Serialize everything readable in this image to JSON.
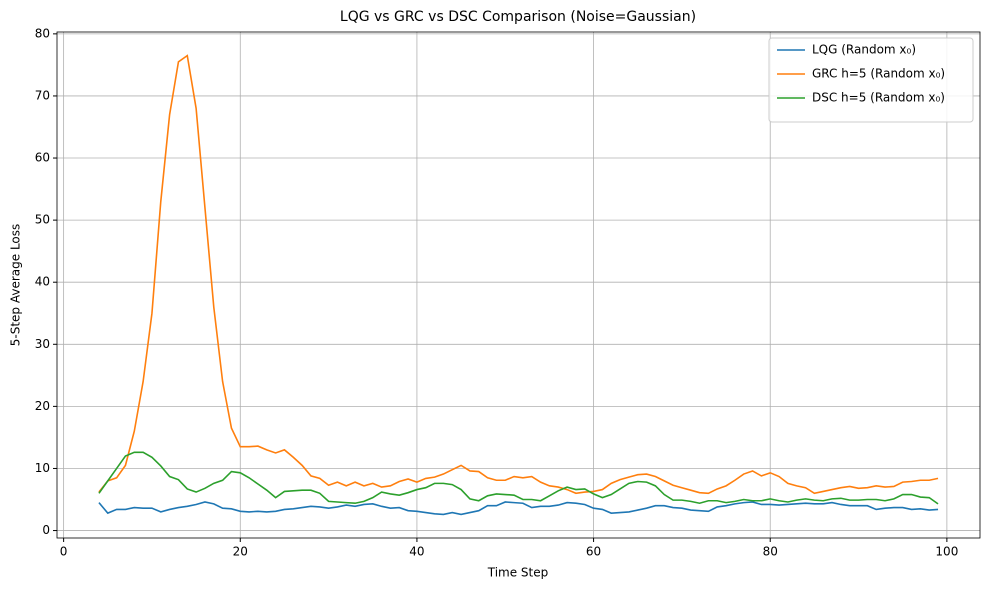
{
  "chart_data": {
    "type": "line",
    "title": "LQG vs GRC vs DSC Comparison (Noise=Gaussian)",
    "x_label": "Time Step",
    "y_label": "5-Step Average Loss",
    "x": [
      4,
      5,
      6,
      7,
      8,
      9,
      10,
      11,
      12,
      13,
      14,
      15,
      16,
      17,
      18,
      19,
      20,
      21,
      22,
      23,
      24,
      25,
      26,
      27,
      28,
      29,
      30,
      31,
      32,
      33,
      34,
      35,
      36,
      37,
      38,
      39,
      40,
      41,
      42,
      43,
      44,
      45,
      46,
      47,
      48,
      49,
      50,
      51,
      52,
      53,
      54,
      55,
      56,
      57,
      58,
      59,
      60,
      61,
      62,
      63,
      64,
      65,
      66,
      67,
      68,
      69,
      70,
      71,
      72,
      73,
      74,
      75,
      76,
      77,
      78,
      79,
      80,
      81,
      82,
      83,
      84,
      85,
      86,
      87,
      88,
      89,
      90,
      91,
      92,
      93,
      94,
      95,
      96,
      97,
      98,
      99
    ],
    "series": [
      {
        "name": "LQG (Random x₀)",
        "color": "#1f77b4",
        "values": [
          4.5,
          2.8,
          3.4,
          3.4,
          3.7,
          3.6,
          3.6,
          3.0,
          3.4,
          3.7,
          3.9,
          4.2,
          4.6,
          4.3,
          3.6,
          3.5,
          3.1,
          3.0,
          3.1,
          3.0,
          3.1,
          3.4,
          3.5,
          3.7,
          3.9,
          3.8,
          3.6,
          3.8,
          4.1,
          3.9,
          4.2,
          4.3,
          3.9,
          3.6,
          3.7,
          3.2,
          3.1,
          2.9,
          2.7,
          2.6,
          2.9,
          2.6,
          2.9,
          3.2,
          4.0,
          4.0,
          4.6,
          4.5,
          4.4,
          3.7,
          3.9,
          3.9,
          4.1,
          4.5,
          4.4,
          4.2,
          3.6,
          3.4,
          2.8,
          2.9,
          3.0,
          3.3,
          3.6,
          4.0,
          4.0,
          3.7,
          3.6,
          3.3,
          3.2,
          3.1,
          3.8,
          4.0,
          4.3,
          4.5,
          4.6,
          4.2,
          4.2,
          4.1,
          4.2,
          4.3,
          4.4,
          4.3,
          4.3,
          4.5,
          4.2,
          4.0,
          4.0,
          4.0,
          3.4,
          3.6,
          3.7,
          3.7,
          3.4,
          3.5,
          3.3,
          3.4
        ]
      },
      {
        "name": "GRC h=5 (Random x₀)",
        "color": "#ff7f0e",
        "values": [
          6.2,
          8.0,
          8.5,
          10.5,
          16.0,
          24.0,
          35.0,
          53.0,
          67.0,
          75.5,
          76.5,
          68.0,
          52.0,
          36.0,
          24.0,
          16.5,
          13.5,
          13.5,
          13.6,
          13.0,
          12.5,
          13.0,
          11.8,
          10.5,
          8.8,
          8.4,
          7.3,
          7.8,
          7.2,
          7.8,
          7.2,
          7.6,
          7.0,
          7.2,
          7.9,
          8.3,
          7.8,
          8.4,
          8.6,
          9.1,
          9.8,
          10.5,
          9.6,
          9.5,
          8.5,
          8.1,
          8.1,
          8.7,
          8.5,
          8.7,
          7.8,
          7.2,
          7.0,
          6.6,
          6.0,
          6.2,
          6.3,
          6.6,
          7.6,
          8.2,
          8.6,
          9.0,
          9.1,
          8.7,
          8.0,
          7.3,
          6.9,
          6.5,
          6.1,
          6.0,
          6.7,
          7.2,
          8.1,
          9.1,
          9.6,
          8.8,
          9.3,
          8.7,
          7.6,
          7.2,
          6.9,
          6.0,
          6.3,
          6.6,
          6.9,
          7.1,
          6.8,
          6.9,
          7.2,
          7.0,
          7.1,
          7.8,
          7.9,
          8.1,
          8.1,
          8.4
        ]
      },
      {
        "name": "DSC h=5 (Random x₀)",
        "color": "#2ca02c",
        "values": [
          6.0,
          8.0,
          10.0,
          12.0,
          12.6,
          12.6,
          11.8,
          10.4,
          8.7,
          8.2,
          6.7,
          6.2,
          6.8,
          7.6,
          8.1,
          9.5,
          9.3,
          8.5,
          7.5,
          6.5,
          5.3,
          6.3,
          6.4,
          6.5,
          6.5,
          6.0,
          4.7,
          4.6,
          4.5,
          4.4,
          4.7,
          5.3,
          6.2,
          5.9,
          5.7,
          6.1,
          6.6,
          6.9,
          7.6,
          7.6,
          7.4,
          6.6,
          5.1,
          4.8,
          5.6,
          5.9,
          5.8,
          5.7,
          5.0,
          5.0,
          4.8,
          5.6,
          6.4,
          7.0,
          6.6,
          6.7,
          5.9,
          5.3,
          5.8,
          6.7,
          7.6,
          7.9,
          7.8,
          7.2,
          5.8,
          4.9,
          4.9,
          4.7,
          4.4,
          4.8,
          4.8,
          4.5,
          4.7,
          5.0,
          4.8,
          4.8,
          5.1,
          4.8,
          4.6,
          4.9,
          5.1,
          4.9,
          4.8,
          5.1,
          5.2,
          4.9,
          4.9,
          5.0,
          5.0,
          4.8,
          5.1,
          5.8,
          5.8,
          5.4,
          5.3,
          4.3
        ]
      }
    ],
    "xlim": [
      -0.75,
      103.75
    ],
    "ylim": [
      -1.2,
      80.3
    ],
    "xticks": [
      0,
      20,
      40,
      60,
      80,
      100
    ],
    "yticks": [
      0,
      10,
      20,
      30,
      40,
      50,
      60,
      70,
      80
    ],
    "grid": true,
    "legend": "upper right"
  }
}
